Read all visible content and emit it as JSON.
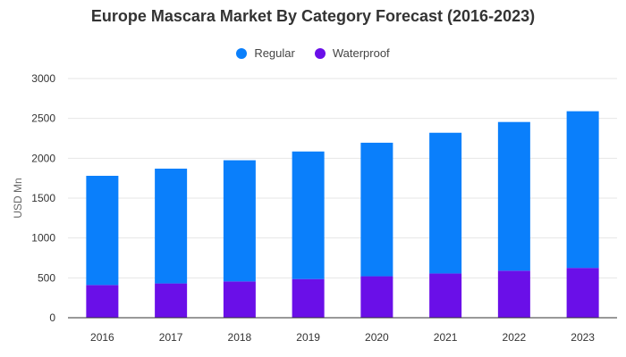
{
  "chart_data": {
    "type": "bar",
    "stacked": true,
    "title": "Europe Mascara Market By Category Forecast (2016-2023)",
    "xlabel": "",
    "ylabel": "USD Mn",
    "categories": [
      "2016",
      "2017",
      "2018",
      "2019",
      "2020",
      "2021",
      "2022",
      "2023"
    ],
    "series": [
      {
        "name": "Waterproof",
        "color": "#6a0fe8",
        "values": [
          410,
          430,
          455,
          485,
          520,
          555,
          590,
          625
        ]
      },
      {
        "name": "Regular",
        "color": "#0a7ffb",
        "values": [
          1370,
          1440,
          1520,
          1600,
          1675,
          1765,
          1865,
          1965
        ]
      }
    ],
    "ylim": [
      0,
      3000
    ],
    "yticks": [
      0,
      500,
      1000,
      1500,
      2000,
      2500,
      3000
    ],
    "grid": true,
    "legend_position": "top-center",
    "legend_order": [
      "Regular",
      "Waterproof"
    ]
  }
}
